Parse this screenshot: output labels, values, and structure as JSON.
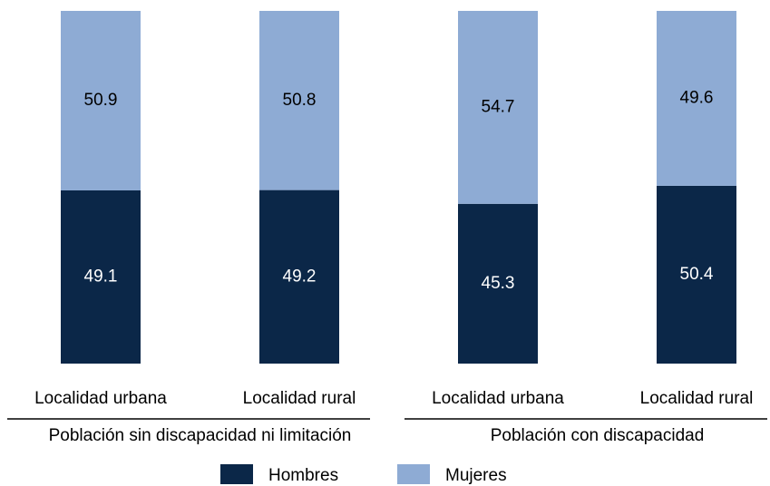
{
  "chart_data": {
    "type": "stacked_bar",
    "categories": [
      "Localidad urbana",
      "Localidad rural",
      "Localidad urbana",
      "Localidad rural"
    ],
    "groups": [
      "Población sin discapacidad ni limitación",
      "Población con discapacidad"
    ],
    "series": [
      {
        "name": "Hombres",
        "color": "#0b2748",
        "label_color": "#ffffff",
        "values": [
          49.1,
          49.2,
          45.3,
          50.4
        ]
      },
      {
        "name": "Mujeres",
        "color": "#8eabd4",
        "label_color": "#000000",
        "values": [
          50.9,
          50.8,
          54.7,
          49.6
        ]
      }
    ],
    "ylim": [
      0,
      100
    ]
  }
}
